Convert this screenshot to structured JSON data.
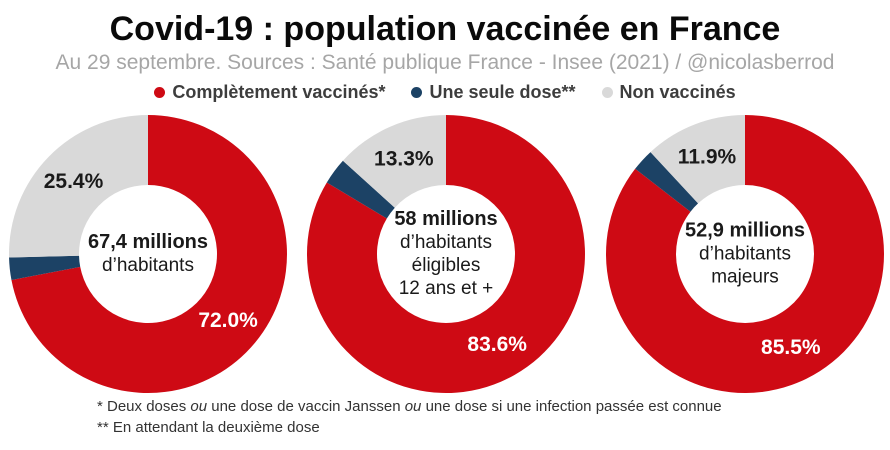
{
  "header": {
    "title": "Covid-19 : population vaccinée en France",
    "subtitle": "Au 29 septembre. Sources : Santé publique France - Insee (2021) / @nicolasberrod"
  },
  "legend": {
    "position": "top-center",
    "items": [
      {
        "label": "Complètement vaccinés*",
        "color": "#ce0a14"
      },
      {
        "label": "Une seule dose**",
        "color": "#1c4265"
      },
      {
        "label": "Non vaccinés",
        "color": "#d9d9d9"
      }
    ]
  },
  "chart_data": [
    {
      "type": "pie",
      "subtype": "donut",
      "start_angle": "top",
      "direction": "clockwise",
      "center_label": "67,4 millions d’habitants",
      "center_lines": [
        {
          "t": "67,4 millions",
          "b": true
        },
        {
          "t": "d’habitants",
          "b": false
        }
      ],
      "slices": [
        {
          "name": "completement-vaccines",
          "value": 72.0,
          "color": "#ce0a14",
          "label": "72.0%",
          "label_color": "#ffffff"
        },
        {
          "name": "une-seule-dose",
          "value": 2.6,
          "color": "#1c4265",
          "label": "",
          "label_color": ""
        },
        {
          "name": "non-vaccines",
          "value": 25.4,
          "color": "#d9d9d9",
          "label": "25.4%",
          "label_color": "#1a1a1a"
        }
      ]
    },
    {
      "type": "pie",
      "subtype": "donut",
      "start_angle": "top",
      "direction": "clockwise",
      "center_label": "58 millions d’habitants éligibles 12 ans et +",
      "center_lines": [
        {
          "t": "58 millions",
          "b": true
        },
        {
          "t": "d’habitants",
          "b": false
        },
        {
          "t": "éligibles",
          "b": false
        },
        {
          "t": "12 ans et +",
          "b": false
        }
      ],
      "slices": [
        {
          "name": "completement-vaccines",
          "value": 83.6,
          "color": "#ce0a14",
          "label": "83.6%",
          "label_color": "#ffffff"
        },
        {
          "name": "une-seule-dose",
          "value": 3.1,
          "color": "#1c4265",
          "label": "",
          "label_color": ""
        },
        {
          "name": "non-vaccines",
          "value": 13.3,
          "color": "#d9d9d9",
          "label": "13.3%",
          "label_color": "#1a1a1a"
        }
      ]
    },
    {
      "type": "pie",
      "subtype": "donut",
      "start_angle": "top",
      "direction": "clockwise",
      "center_label": "52,9 millions d’habitants majeurs",
      "center_lines": [
        {
          "t": "52,9 millions",
          "b": true
        },
        {
          "t": "d’habitants",
          "b": false
        },
        {
          "t": "majeurs",
          "b": false
        }
      ],
      "slices": [
        {
          "name": "completement-vaccines",
          "value": 85.5,
          "color": "#ce0a14",
          "label": "85.5%",
          "label_color": "#ffffff"
        },
        {
          "name": "une-seule-dose",
          "value": 2.6,
          "color": "#1c4265",
          "label": "",
          "label_color": ""
        },
        {
          "name": "non-vaccines",
          "value": 11.9,
          "color": "#d9d9d9",
          "label": "11.9%",
          "label_color": "#1a1a1a"
        }
      ]
    }
  ],
  "footnotes": [
    [
      {
        "t": "* Deux doses ",
        "i": false
      },
      {
        "t": "ou",
        "i": true
      },
      {
        "t": " une dose de vaccin Janssen ",
        "i": false
      },
      {
        "t": "ou",
        "i": true
      },
      {
        "t": " une dose si une infection passée est connue",
        "i": false
      }
    ],
    [
      {
        "t": "** En attendant la deuxième dose",
        "i": false
      }
    ]
  ]
}
